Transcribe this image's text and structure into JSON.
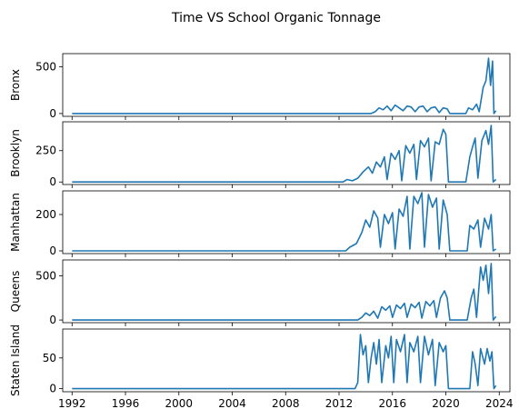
{
  "chart_data": {
    "type": "line",
    "title": "Time VS School Organic Tonnage",
    "line_color": "#1f77b4",
    "x_ticks": [
      "1992",
      "1996",
      "2000",
      "2004",
      "2008",
      "2012",
      "2016",
      "2020",
      "2024"
    ],
    "xlim": [
      1991.3,
      2024.8
    ],
    "panels": [
      {
        "ylabel": "Bronx",
        "ylim": [
          -30,
          640
        ],
        "yticks": [
          0,
          500
        ],
        "series": [
          {
            "x": 1992.0,
            "y": 0
          },
          {
            "x": 2014.4,
            "y": 0
          },
          {
            "x": 2014.7,
            "y": 20
          },
          {
            "x": 2015.0,
            "y": 60
          },
          {
            "x": 2015.3,
            "y": 40
          },
          {
            "x": 2015.6,
            "y": 80
          },
          {
            "x": 2015.9,
            "y": 30
          },
          {
            "x": 2016.2,
            "y": 90
          },
          {
            "x": 2016.5,
            "y": 60
          },
          {
            "x": 2016.8,
            "y": 30
          },
          {
            "x": 2017.1,
            "y": 80
          },
          {
            "x": 2017.4,
            "y": 70
          },
          {
            "x": 2017.7,
            "y": 20
          },
          {
            "x": 2018.0,
            "y": 70
          },
          {
            "x": 2018.3,
            "y": 80
          },
          {
            "x": 2018.6,
            "y": 20
          },
          {
            "x": 2018.9,
            "y": 60
          },
          {
            "x": 2019.2,
            "y": 70
          },
          {
            "x": 2019.5,
            "y": 10
          },
          {
            "x": 2019.8,
            "y": 60
          },
          {
            "x": 2020.1,
            "y": 50
          },
          {
            "x": 2020.3,
            "y": 0
          },
          {
            "x": 2021.5,
            "y": 0
          },
          {
            "x": 2021.7,
            "y": 60
          },
          {
            "x": 2022.0,
            "y": 40
          },
          {
            "x": 2022.3,
            "y": 100
          },
          {
            "x": 2022.5,
            "y": 20
          },
          {
            "x": 2022.8,
            "y": 280
          },
          {
            "x": 2023.0,
            "y": 350
          },
          {
            "x": 2023.2,
            "y": 590
          },
          {
            "x": 2023.35,
            "y": 300
          },
          {
            "x": 2023.5,
            "y": 560
          },
          {
            "x": 2023.6,
            "y": 0
          },
          {
            "x": 2023.75,
            "y": 30
          }
        ]
      },
      {
        "ylabel": "Brooklyn",
        "ylim": [
          -20,
          480
        ],
        "yticks": [
          0,
          250
        ],
        "series": [
          {
            "x": 1992.0,
            "y": 0
          },
          {
            "x": 2012.3,
            "y": 0
          },
          {
            "x": 2012.6,
            "y": 20
          },
          {
            "x": 2013.0,
            "y": 10
          },
          {
            "x": 2013.4,
            "y": 30
          },
          {
            "x": 2013.8,
            "y": 80
          },
          {
            "x": 2014.2,
            "y": 120
          },
          {
            "x": 2014.5,
            "y": 70
          },
          {
            "x": 2014.8,
            "y": 160
          },
          {
            "x": 2015.1,
            "y": 120
          },
          {
            "x": 2015.4,
            "y": 200
          },
          {
            "x": 2015.6,
            "y": 20
          },
          {
            "x": 2015.9,
            "y": 230
          },
          {
            "x": 2016.2,
            "y": 180
          },
          {
            "x": 2016.5,
            "y": 250
          },
          {
            "x": 2016.7,
            "y": 10
          },
          {
            "x": 2017.0,
            "y": 290
          },
          {
            "x": 2017.3,
            "y": 230
          },
          {
            "x": 2017.6,
            "y": 300
          },
          {
            "x": 2017.8,
            "y": 20
          },
          {
            "x": 2018.1,
            "y": 330
          },
          {
            "x": 2018.4,
            "y": 280
          },
          {
            "x": 2018.7,
            "y": 350
          },
          {
            "x": 2018.9,
            "y": 10
          },
          {
            "x": 2019.2,
            "y": 320
          },
          {
            "x": 2019.5,
            "y": 300
          },
          {
            "x": 2019.8,
            "y": 420
          },
          {
            "x": 2020.0,
            "y": 380
          },
          {
            "x": 2020.2,
            "y": 0
          },
          {
            "x": 2021.5,
            "y": 0
          },
          {
            "x": 2021.8,
            "y": 200
          },
          {
            "x": 2022.0,
            "y": 280
          },
          {
            "x": 2022.2,
            "y": 350
          },
          {
            "x": 2022.4,
            "y": 30
          },
          {
            "x": 2022.7,
            "y": 330
          },
          {
            "x": 2023.0,
            "y": 410
          },
          {
            "x": 2023.2,
            "y": 300
          },
          {
            "x": 2023.4,
            "y": 450
          },
          {
            "x": 2023.55,
            "y": 0
          },
          {
            "x": 2023.75,
            "y": 20
          }
        ]
      },
      {
        "ylabel": "Manhattan",
        "ylim": [
          -15,
          330
        ],
        "yticks": [
          0,
          200
        ],
        "series": [
          {
            "x": 1992.0,
            "y": 0
          },
          {
            "x": 2012.5,
            "y": 0
          },
          {
            "x": 2012.8,
            "y": 20
          },
          {
            "x": 2013.3,
            "y": 40
          },
          {
            "x": 2013.7,
            "y": 100
          },
          {
            "x": 2014.0,
            "y": 170
          },
          {
            "x": 2014.3,
            "y": 130
          },
          {
            "x": 2014.6,
            "y": 220
          },
          {
            "x": 2014.9,
            "y": 180
          },
          {
            "x": 2015.1,
            "y": 20
          },
          {
            "x": 2015.4,
            "y": 200
          },
          {
            "x": 2015.7,
            "y": 150
          },
          {
            "x": 2016.0,
            "y": 210
          },
          {
            "x": 2016.2,
            "y": 10
          },
          {
            "x": 2016.5,
            "y": 230
          },
          {
            "x": 2016.8,
            "y": 190
          },
          {
            "x": 2017.1,
            "y": 300
          },
          {
            "x": 2017.3,
            "y": 10
          },
          {
            "x": 2017.6,
            "y": 300
          },
          {
            "x": 2017.9,
            "y": 260
          },
          {
            "x": 2018.2,
            "y": 320
          },
          {
            "x": 2018.4,
            "y": 20
          },
          {
            "x": 2018.7,
            "y": 310
          },
          {
            "x": 2019.0,
            "y": 240
          },
          {
            "x": 2019.3,
            "y": 290
          },
          {
            "x": 2019.5,
            "y": 10
          },
          {
            "x": 2019.8,
            "y": 280
          },
          {
            "x": 2020.1,
            "y": 200
          },
          {
            "x": 2020.3,
            "y": 0
          },
          {
            "x": 2021.6,
            "y": 0
          },
          {
            "x": 2021.8,
            "y": 140
          },
          {
            "x": 2022.1,
            "y": 120
          },
          {
            "x": 2022.4,
            "y": 170
          },
          {
            "x": 2022.6,
            "y": 20
          },
          {
            "x": 2022.9,
            "y": 180
          },
          {
            "x": 2023.2,
            "y": 120
          },
          {
            "x": 2023.4,
            "y": 200
          },
          {
            "x": 2023.55,
            "y": 0
          },
          {
            "x": 2023.75,
            "y": 10
          }
        ]
      },
      {
        "ylabel": "Queens",
        "ylim": [
          -30,
          680
        ],
        "yticks": [
          0,
          500
        ],
        "series": [
          {
            "x": 1992.0,
            "y": 0
          },
          {
            "x": 2013.4,
            "y": 0
          },
          {
            "x": 2013.7,
            "y": 30
          },
          {
            "x": 2014.0,
            "y": 80
          },
          {
            "x": 2014.3,
            "y": 50
          },
          {
            "x": 2014.6,
            "y": 100
          },
          {
            "x": 2014.9,
            "y": 20
          },
          {
            "x": 2015.2,
            "y": 150
          },
          {
            "x": 2015.5,
            "y": 110
          },
          {
            "x": 2015.8,
            "y": 160
          },
          {
            "x": 2016.0,
            "y": 30
          },
          {
            "x": 2016.3,
            "y": 170
          },
          {
            "x": 2016.6,
            "y": 130
          },
          {
            "x": 2016.9,
            "y": 190
          },
          {
            "x": 2017.1,
            "y": 30
          },
          {
            "x": 2017.4,
            "y": 180
          },
          {
            "x": 2017.7,
            "y": 140
          },
          {
            "x": 2018.0,
            "y": 200
          },
          {
            "x": 2018.2,
            "y": 20
          },
          {
            "x": 2018.5,
            "y": 210
          },
          {
            "x": 2018.8,
            "y": 160
          },
          {
            "x": 2019.1,
            "y": 220
          },
          {
            "x": 2019.3,
            "y": 30
          },
          {
            "x": 2019.6,
            "y": 250
          },
          {
            "x": 2019.9,
            "y": 330
          },
          {
            "x": 2020.1,
            "y": 250
          },
          {
            "x": 2020.3,
            "y": 0
          },
          {
            "x": 2021.6,
            "y": 0
          },
          {
            "x": 2021.9,
            "y": 250
          },
          {
            "x": 2022.1,
            "y": 350
          },
          {
            "x": 2022.3,
            "y": 30
          },
          {
            "x": 2022.6,
            "y": 600
          },
          {
            "x": 2022.8,
            "y": 450
          },
          {
            "x": 2023.0,
            "y": 620
          },
          {
            "x": 2023.2,
            "y": 300
          },
          {
            "x": 2023.4,
            "y": 640
          },
          {
            "x": 2023.55,
            "y": 0
          },
          {
            "x": 2023.75,
            "y": 40
          }
        ]
      },
      {
        "ylabel": "Staten Island",
        "ylim": [
          -5,
          97
        ],
        "yticks": [
          0,
          50
        ],
        "series": [
          {
            "x": 1992.0,
            "y": 0
          },
          {
            "x": 2013.2,
            "y": 0
          },
          {
            "x": 2013.4,
            "y": 10
          },
          {
            "x": 2013.6,
            "y": 88
          },
          {
            "x": 2013.8,
            "y": 55
          },
          {
            "x": 2014.0,
            "y": 70
          },
          {
            "x": 2014.2,
            "y": 10
          },
          {
            "x": 2014.4,
            "y": 50
          },
          {
            "x": 2014.6,
            "y": 75
          },
          {
            "x": 2014.8,
            "y": 40
          },
          {
            "x": 2015.0,
            "y": 80
          },
          {
            "x": 2015.2,
            "y": 10
          },
          {
            "x": 2015.5,
            "y": 70
          },
          {
            "x": 2015.7,
            "y": 50
          },
          {
            "x": 2015.9,
            "y": 85
          },
          {
            "x": 2016.1,
            "y": 10
          },
          {
            "x": 2016.3,
            "y": 80
          },
          {
            "x": 2016.6,
            "y": 60
          },
          {
            "x": 2016.9,
            "y": 88
          },
          {
            "x": 2017.1,
            "y": 10
          },
          {
            "x": 2017.3,
            "y": 75
          },
          {
            "x": 2017.6,
            "y": 60
          },
          {
            "x": 2017.9,
            "y": 85
          },
          {
            "x": 2018.1,
            "y": 10
          },
          {
            "x": 2018.4,
            "y": 85
          },
          {
            "x": 2018.7,
            "y": 55
          },
          {
            "x": 2019.0,
            "y": 80
          },
          {
            "x": 2019.2,
            "y": 5
          },
          {
            "x": 2019.5,
            "y": 75
          },
          {
            "x": 2019.8,
            "y": 60
          },
          {
            "x": 2020.0,
            "y": 70
          },
          {
            "x": 2020.2,
            "y": 0
          },
          {
            "x": 2021.8,
            "y": 0
          },
          {
            "x": 2022.0,
            "y": 60
          },
          {
            "x": 2022.2,
            "y": 40
          },
          {
            "x": 2022.4,
            "y": 5
          },
          {
            "x": 2022.6,
            "y": 65
          },
          {
            "x": 2022.9,
            "y": 40
          },
          {
            "x": 2023.1,
            "y": 65
          },
          {
            "x": 2023.3,
            "y": 45
          },
          {
            "x": 2023.45,
            "y": 60
          },
          {
            "x": 2023.6,
            "y": 0
          },
          {
            "x": 2023.75,
            "y": 5
          }
        ]
      }
    ]
  }
}
